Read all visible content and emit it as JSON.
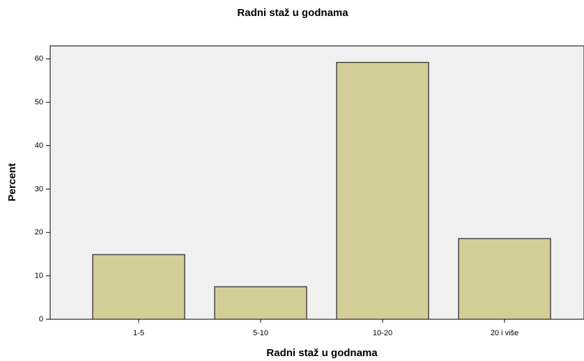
{
  "chart_data": {
    "type": "bar",
    "title": "Radni staž u godnama",
    "x_label": "Radni staž u godnama",
    "y_label": "Percent",
    "categories": [
      "1-5",
      "5-10",
      "10-20",
      "20 i više"
    ],
    "values": [
      14.9,
      7.5,
      59.2,
      18.6
    ],
    "color": "#d3ce98",
    "ylim": [
      0,
      63
    ],
    "yticks": [
      0,
      10,
      20,
      30,
      40,
      50,
      60
    ],
    "grid": false
  }
}
